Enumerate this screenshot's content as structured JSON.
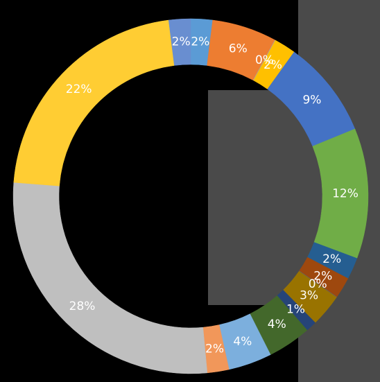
{
  "chart_data": {
    "type": "pie",
    "donut": true,
    "values": [
      2,
      6,
      0,
      2,
      9,
      12,
      2,
      2,
      0,
      3,
      1,
      4,
      4,
      2,
      28,
      22,
      2
    ],
    "value_labels": [
      "2%",
      "6%",
      "0%",
      "2%",
      "9%",
      "12%",
      "2%",
      "2%",
      "0%",
      "3%",
      "1%",
      "4%",
      "4%",
      "2%",
      "28%",
      "22%",
      "2%"
    ],
    "colors": [
      "#5b9bd5",
      "#ed7d31",
      "#a5a5a5",
      "#ffc000",
      "#4472c4",
      "#70ad47",
      "#255e91",
      "#9e480e",
      "#636363",
      "#997300",
      "#264478",
      "#43682b",
      "#7cafdd",
      "#f1975a",
      "#bfbfbf",
      "#ffcd33",
      "#698ed0"
    ]
  }
}
